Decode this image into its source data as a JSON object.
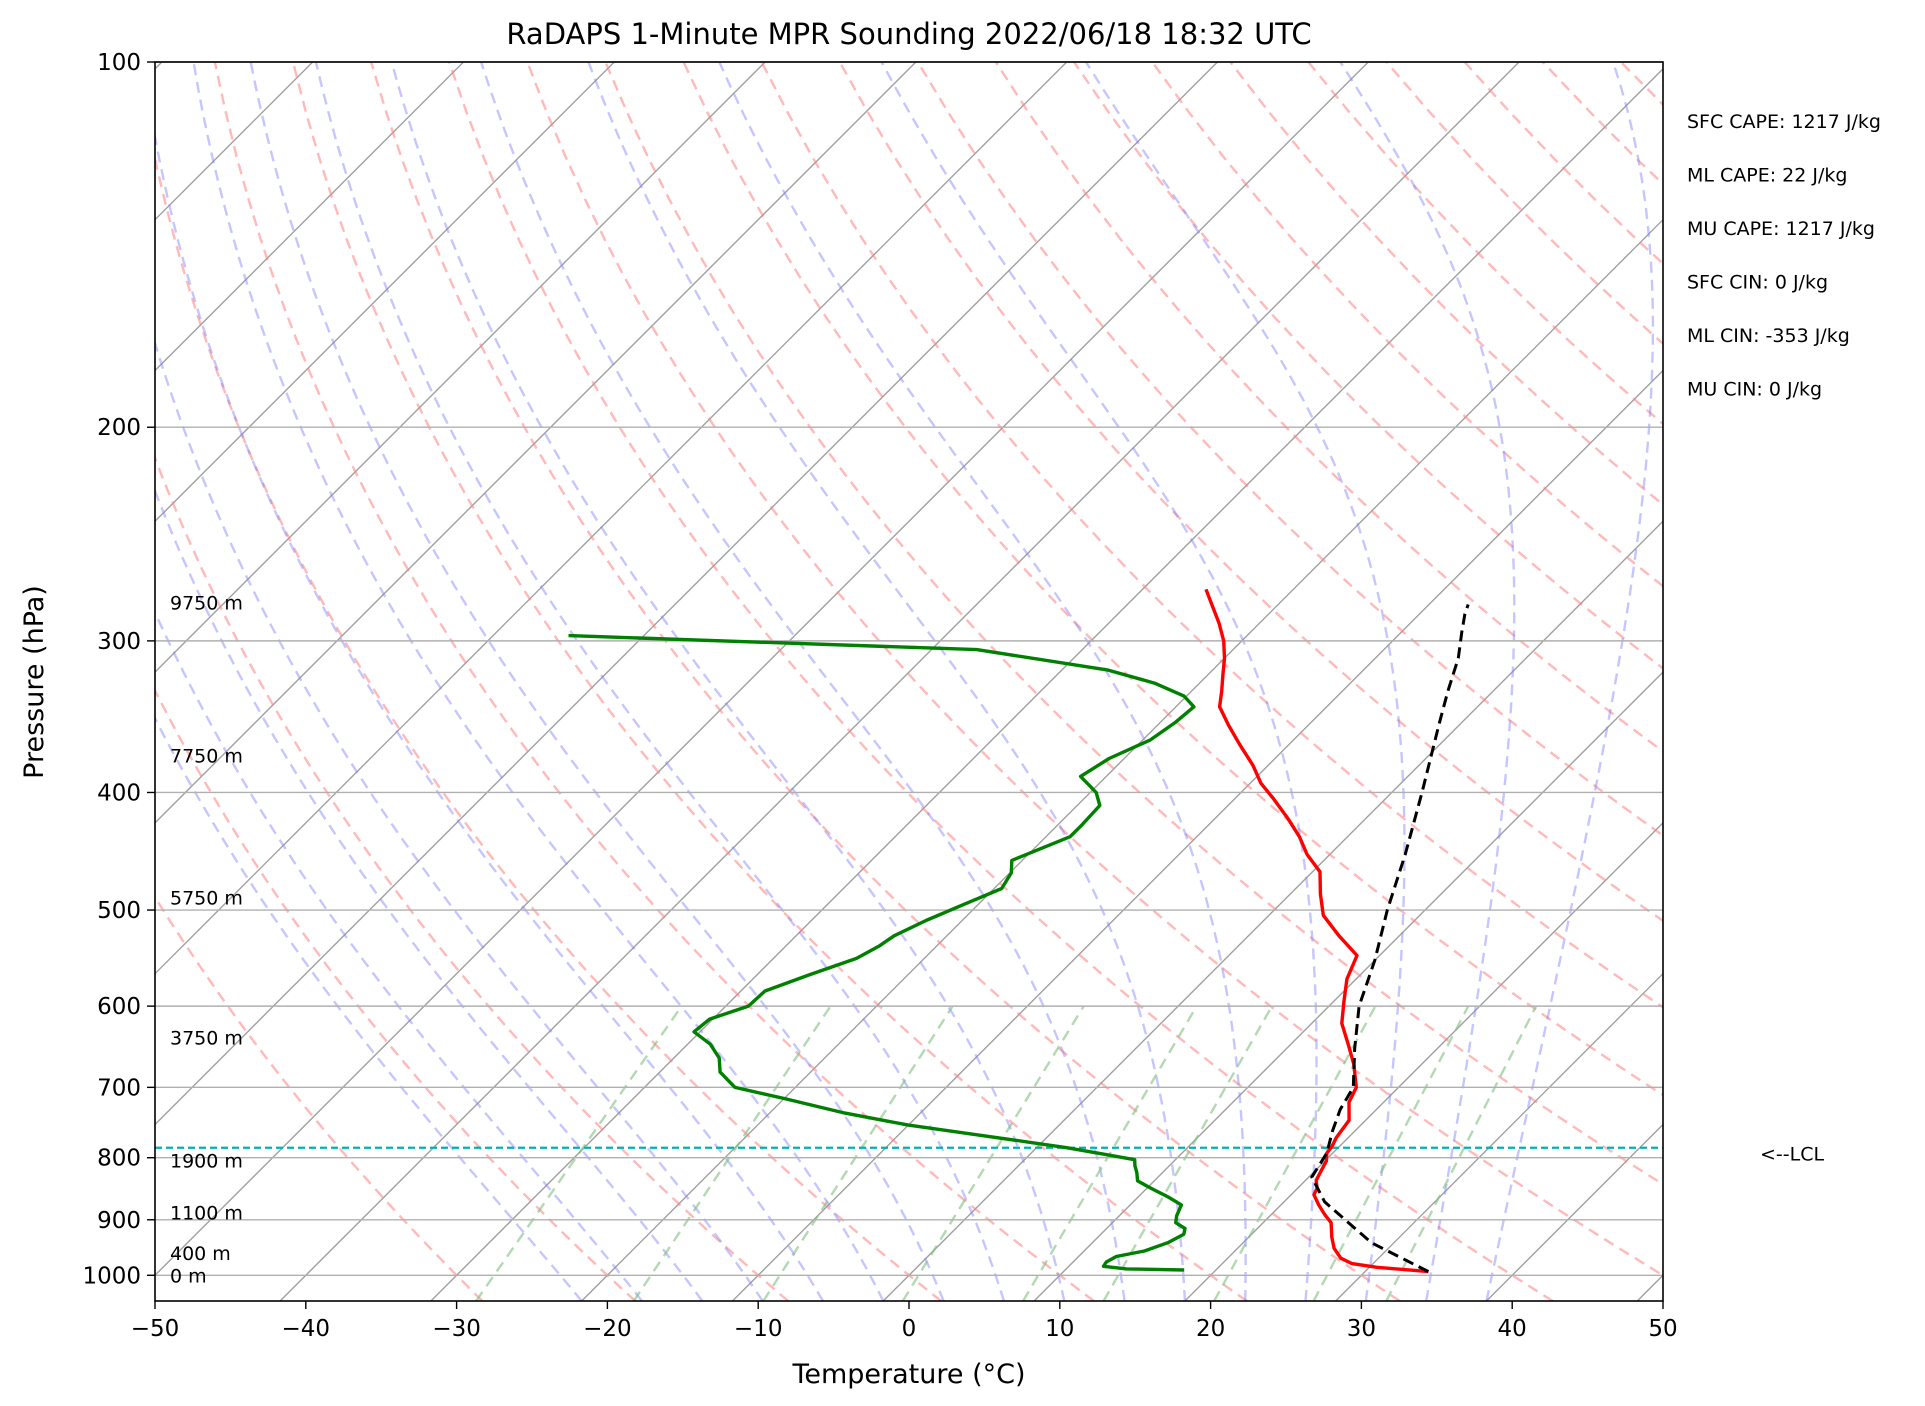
{
  "chart_data": {
    "type": "line",
    "diagram": "skew-t log-p",
    "title": "RaDAPS 1-Minute MPR Sounding 2022/06/18 18:32 UTC",
    "xlabel": "Temperature (°C)",
    "ylabel": "Pressure (hPa)",
    "xlim": [
      -50,
      50
    ],
    "ylim": [
      1050,
      100
    ],
    "y_scale": "log",
    "x_ticks": [
      -50,
      -40,
      -30,
      -20,
      -10,
      0,
      10,
      20,
      30,
      40,
      50
    ],
    "x_tick_labels": [
      "−50",
      "−40",
      "−30",
      "−20",
      "−10",
      "0",
      "10",
      "20",
      "30",
      "40",
      "50"
    ],
    "y_ticks": [
      100,
      200,
      300,
      400,
      500,
      600,
      700,
      800,
      900,
      1000
    ],
    "y_tick_labels": [
      "100",
      "200",
      "300",
      "400",
      "500",
      "600",
      "700",
      "800",
      "900",
      "1000"
    ],
    "grid": true,
    "series": [
      {
        "id": "temperature",
        "color": "#ff0000",
        "style": "solid",
        "points": [
          [
            34.2,
            993
          ],
          [
            30.5,
            985
          ],
          [
            28.6,
            978
          ],
          [
            27.5,
            968
          ],
          [
            26.4,
            950
          ],
          [
            25.5,
            930
          ],
          [
            24.5,
            905
          ],
          [
            23.6,
            892
          ],
          [
            22.5,
            875
          ],
          [
            21.5,
            858
          ],
          [
            21.3,
            848
          ],
          [
            20.7,
            835
          ],
          [
            20.4,
            820
          ],
          [
            20.1,
            805
          ],
          [
            19.6,
            793
          ],
          [
            19.5,
            783
          ],
          [
            19.2,
            770
          ],
          [
            18.9,
            745
          ],
          [
            17.7,
            720
          ],
          [
            17.2,
            700
          ],
          [
            15.5,
            670
          ],
          [
            13.8,
            645
          ],
          [
            12.0,
            620
          ],
          [
            10.7,
            595
          ],
          [
            9.4,
            570
          ],
          [
            8.5,
            545
          ],
          [
            6.0,
            525
          ],
          [
            3.6,
            505
          ],
          [
            2.0,
            485
          ],
          [
            0.5,
            465
          ],
          [
            -1.5,
            450
          ],
          [
            -3.2,
            435
          ],
          [
            -5.2,
            420
          ],
          [
            -7.4,
            405
          ],
          [
            -9.3,
            393
          ],
          [
            -11.0,
            380
          ],
          [
            -13.3,
            365
          ],
          [
            -15.3,
            352
          ],
          [
            -17.1,
            340
          ],
          [
            -18.0,
            330
          ],
          [
            -19.0,
            320
          ],
          [
            -20.0,
            310
          ],
          [
            -21.2,
            300
          ],
          [
            -22.7,
            290
          ],
          [
            -24.4,
            280
          ],
          [
            -25.8,
            272
          ]
        ]
      },
      {
        "id": "dewpoint",
        "color": "#008000",
        "style": "solid",
        "points": [
          [
            17.9,
            990
          ],
          [
            14.0,
            988
          ],
          [
            12.3,
            983
          ],
          [
            12.2,
            975
          ],
          [
            12.5,
            965
          ],
          [
            14.0,
            955
          ],
          [
            15.0,
            940
          ],
          [
            15.5,
            925
          ],
          [
            15.2,
            915
          ],
          [
            14.2,
            905
          ],
          [
            13.8,
            893
          ],
          [
            13.4,
            875
          ],
          [
            12.0,
            862
          ],
          [
            10.3,
            848
          ],
          [
            8.9,
            836
          ],
          [
            8.3,
            823
          ],
          [
            7.7,
            812
          ],
          [
            7.3,
            803
          ],
          [
            5.0,
            795
          ],
          [
            2.0,
            785
          ],
          [
            -1.5,
            775
          ],
          [
            -5.2,
            765
          ],
          [
            -10.0,
            752
          ],
          [
            -15.0,
            735
          ],
          [
            -20.0,
            715
          ],
          [
            -24.0,
            700
          ],
          [
            -26.0,
            680
          ],
          [
            -27.0,
            662
          ],
          [
            -28.5,
            645
          ],
          [
            -30.4,
            630
          ],
          [
            -30.2,
            615
          ],
          [
            -28.5,
            600
          ],
          [
            -28.4,
            583
          ],
          [
            -26.5,
            565
          ],
          [
            -24.5,
            548
          ],
          [
            -23.8,
            535
          ],
          [
            -23.5,
            525
          ],
          [
            -22.4,
            510
          ],
          [
            -21.0,
            495
          ],
          [
            -19.5,
            480
          ],
          [
            -19.9,
            466
          ],
          [
            -20.7,
            455
          ],
          [
            -18.4,
            435
          ],
          [
            -18.4,
            425
          ],
          [
            -18.5,
            410
          ],
          [
            -19.6,
            400
          ],
          [
            -21.7,
            388
          ],
          [
            -21.0,
            375
          ],
          [
            -19.5,
            362
          ],
          [
            -19.0,
            350
          ],
          [
            -18.8,
            340
          ],
          [
            -20.2,
            333
          ],
          [
            -23.0,
            325
          ],
          [
            -27.0,
            317
          ],
          [
            -37.0,
            305
          ],
          [
            -65.0,
            297
          ]
        ]
      },
      {
        "id": "parcel",
        "color": "#000000",
        "style": "dashed",
        "points": [
          [
            34.2,
            993
          ],
          [
            28.5,
            940
          ],
          [
            22.7,
            870
          ],
          [
            20.2,
            830
          ],
          [
            19.6,
            793
          ],
          [
            18.5,
            760
          ],
          [
            17.6,
            730
          ],
          [
            17.0,
            700
          ],
          [
            14.5,
            650
          ],
          [
            12.0,
            600
          ],
          [
            10.0,
            550
          ],
          [
            7.5,
            500
          ],
          [
            5.0,
            450
          ],
          [
            2.0,
            400
          ],
          [
            -1.5,
            350
          ],
          [
            -3.0,
            330
          ],
          [
            -4.5,
            310
          ],
          [
            -6.0,
            295
          ],
          [
            -7.0,
            285
          ],
          [
            -7.4,
            280
          ]
        ]
      }
    ],
    "lcl": {
      "pressure": 785,
      "label": "<--LCL",
      "color": "#00b2b2"
    },
    "height_labels": [
      {
        "text": "9750 m",
        "pressure": 279
      },
      {
        "text": "7750 m",
        "pressure": 373
      },
      {
        "text": "5750 m",
        "pressure": 488
      },
      {
        "text": "3750 m",
        "pressure": 637
      },
      {
        "text": "1900 m",
        "pressure": 804
      },
      {
        "text": "1100 m",
        "pressure": 888
      },
      {
        "text": "400 m",
        "pressure": 959
      },
      {
        "text": "0 m",
        "pressure": 1000
      }
    ],
    "background_lines": {
      "isotherms": {
        "color": "#a0a0a0",
        "step": 10
      },
      "dry_adiabats": {
        "color": "#ff8080"
      },
      "moist_adiabats": {
        "color": "#8080ff"
      },
      "mixing_ratio": {
        "color": "#80c080"
      }
    },
    "stats": [
      "SFC CAPE: 1217 J/kg",
      "ML CAPE: 22 J/kg",
      "MU CAPE: 1217 J/kg",
      "SFC CIN: 0 J/kg",
      "ML CIN: -353 J/kg",
      "MU CIN: 0 J/kg"
    ]
  }
}
